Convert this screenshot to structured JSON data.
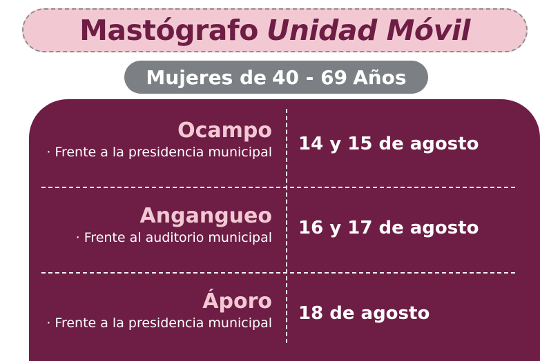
{
  "header": {
    "title_part1": "Mastógrafo",
    "title_part2": "Unidad Móvil",
    "subtitle_pre": "Mujeres de",
    "subtitle_range": "40 - 69",
    "subtitle_post": "Años"
  },
  "schedule": [
    {
      "location": "Ocampo",
      "detail": "· Frente a la presidencia municipal",
      "date": "14 y 15 de agosto"
    },
    {
      "location": "Angangueo",
      "detail": "· Frente al auditorio municipal",
      "date": "16 y 17 de agosto"
    },
    {
      "location": "Áporo",
      "detail": "· Frente a la presidencia municipal",
      "date": "18 de agosto"
    }
  ],
  "colors": {
    "brand_maroon": "#6e1d45",
    "brand_pink": "#f2c9d3",
    "pill_gray": "#7c7f83"
  }
}
